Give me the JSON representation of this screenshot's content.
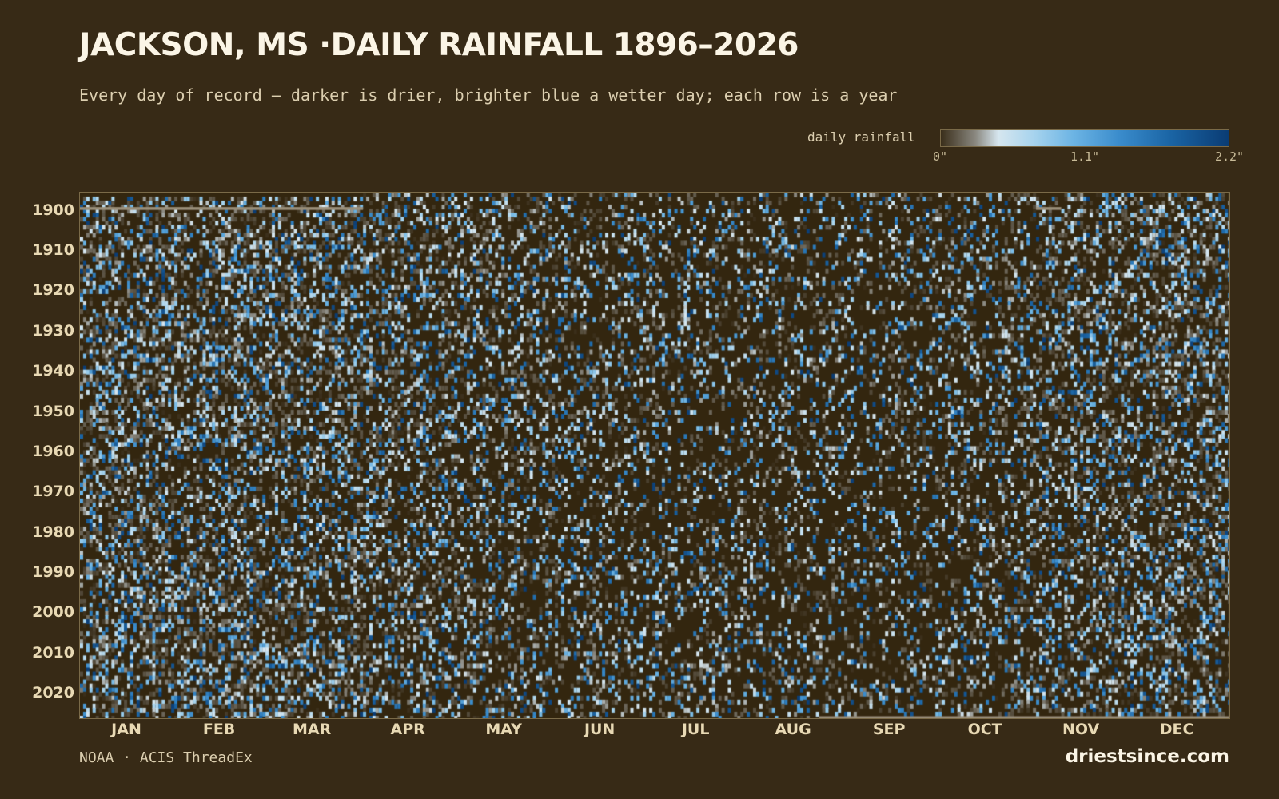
{
  "title": "JACKSON, MS ·DAILY RAINFALL 1896–2026",
  "subtitle": "Every day of record — darker is drier, brighter blue a wetter day; each row is a year",
  "legend": {
    "label": "daily rainfall",
    "ticks": [
      "0\"",
      "1.1\"",
      "2.2\""
    ]
  },
  "footer": {
    "source": "NOAA · ACIS ThreadEx",
    "brand": "driestsince.com"
  },
  "colors": {
    "background": "#372a16",
    "dry": "#33260f",
    "missing": "#9a8f7a",
    "scale": [
      "#3a2e1a",
      "#8a8880",
      "#d6e6ef",
      "#a8d4ee",
      "#6cb4e4",
      "#3a8ccc",
      "#1a64a4",
      "#0a3c74"
    ]
  },
  "chart_data": {
    "type": "heatmap",
    "x_axis": {
      "unit": "day of year",
      "range": [
        1,
        366
      ],
      "tick_labels": [
        "JAN",
        "FEB",
        "MAR",
        "APR",
        "MAY",
        "JUN",
        "JUL",
        "AUG",
        "SEP",
        "OCT",
        "NOV",
        "DEC"
      ],
      "month_start_days": [
        1,
        32,
        60,
        91,
        121,
        152,
        182,
        213,
        244,
        274,
        305,
        335
      ],
      "month_mid_days": [
        16,
        45.5,
        75,
        105.5,
        136,
        166.5,
        197,
        228,
        258.5,
        289,
        319.5,
        350
      ]
    },
    "y_axis": {
      "unit": "year",
      "range": [
        1896,
        2026
      ],
      "tick_labels": [
        1900,
        1910,
        1920,
        1930,
        1940,
        1950,
        1960,
        1970,
        1980,
        1990,
        2000,
        2010,
        2020
      ]
    },
    "value_unit": "inches",
    "color_range": [
      0,
      2.2
    ],
    "missing_spans": [
      {
        "year": 1896,
        "from_day": 1,
        "to_day": 90
      },
      {
        "year": 1896,
        "from_day": 305,
        "to_day": 312
      },
      {
        "year": 2026,
        "from_day": 236,
        "to_day": 366
      }
    ]
  }
}
